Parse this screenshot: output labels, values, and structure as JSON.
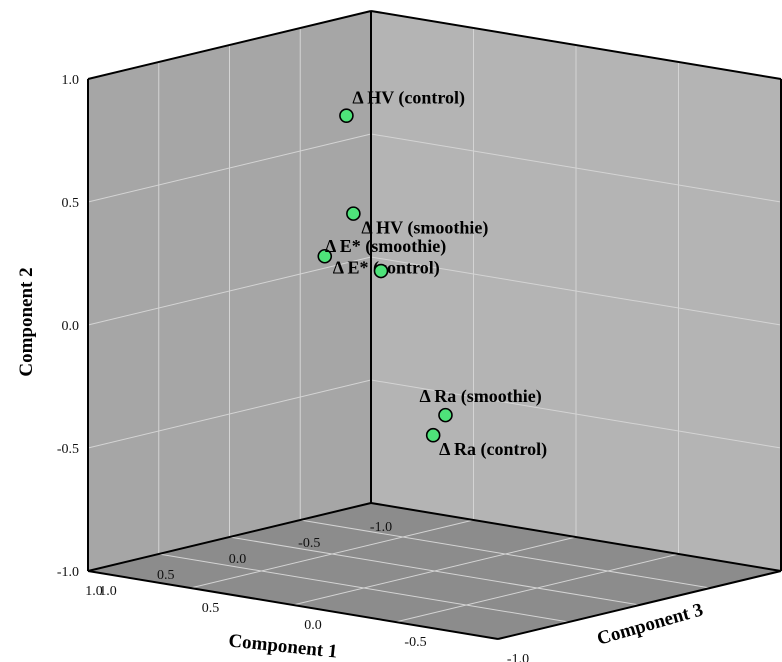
{
  "chart_data": {
    "type": "scatter",
    "title": "",
    "xlabel": "Component 1",
    "ylabel": "Component 2",
    "zlabel": "Component 3",
    "xlim": [
      -1.0,
      1.0
    ],
    "ylim": [
      -1.0,
      1.0
    ],
    "zlim": [
      -1.0,
      1.0
    ],
    "x_ticks": [
      "-1.0",
      "-0.5",
      "0.0",
      "0.5",
      "1.0"
    ],
    "y_ticks": [
      "-1.0",
      "-0.5",
      "0.0",
      "0.5",
      "1.0"
    ],
    "z_ticks": [
      "-1.0",
      "-0.5",
      "0.0",
      "0.5",
      "1.0"
    ],
    "grid": true,
    "marker_color": "#4ee37a",
    "pane_color": "#b4b4b4",
    "points": [
      {
        "label": "Δ HV (control)",
        "x": 0.55,
        "y": 0.92,
        "z": 0.05
      },
      {
        "label": "Δ HV (smoothie)",
        "x": 0.95,
        "y": 0.62,
        "z": -0.26
      },
      {
        "label": "Δ E* (control)",
        "x": 0.79,
        "y": 0.39,
        "z": -0.01
      },
      {
        "label": "Δ E* (smoothie)",
        "x": -0.1,
        "y": 0.16,
        "z": 0.33
      },
      {
        "label": "Δ Ra (smoothie)",
        "x": 0.98,
        "y": -0.13,
        "z": -0.73
      },
      {
        "label": "Δ Ra (control)",
        "x": 0.98,
        "y": -0.22,
        "z": -0.67
      }
    ]
  }
}
